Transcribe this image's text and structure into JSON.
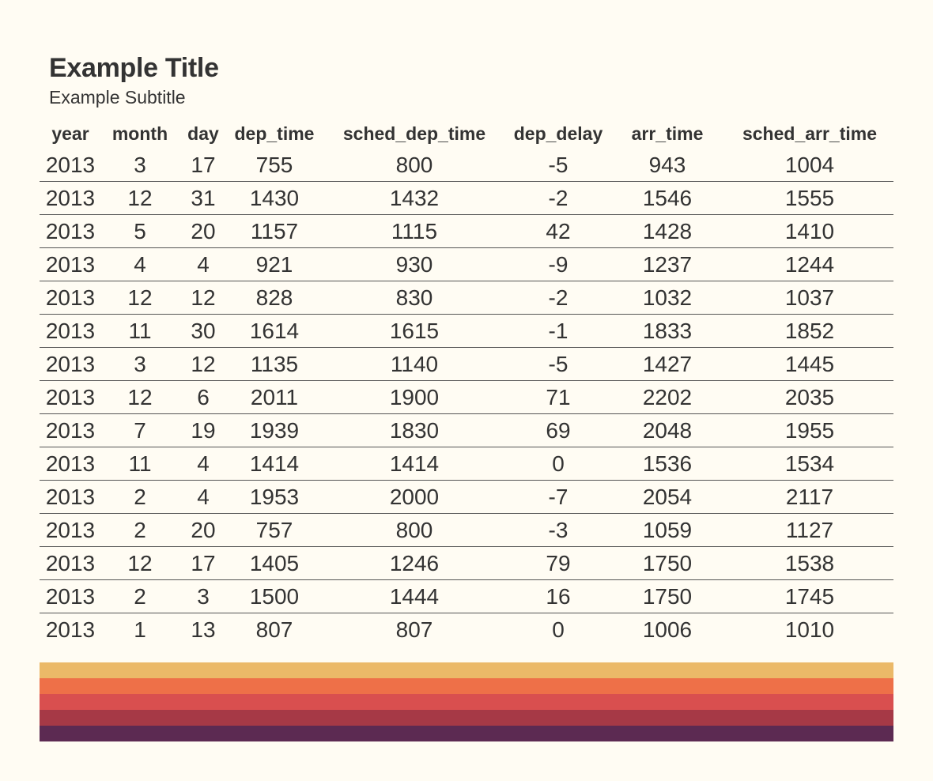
{
  "header": {
    "title": "Example Title",
    "subtitle": "Example Subtitle"
  },
  "chart_data": {
    "type": "table",
    "title": "Example Title",
    "subtitle": "Example Subtitle",
    "columns": [
      "year",
      "month",
      "day",
      "dep_time",
      "sched_dep_time",
      "dep_delay",
      "arr_time",
      "sched_arr_time"
    ],
    "rows": [
      [
        2013,
        3,
        17,
        755,
        800,
        -5,
        943,
        1004
      ],
      [
        2013,
        12,
        31,
        1430,
        1432,
        -2,
        1546,
        1555
      ],
      [
        2013,
        5,
        20,
        1157,
        1115,
        42,
        1428,
        1410
      ],
      [
        2013,
        4,
        4,
        921,
        930,
        -9,
        1237,
        1244
      ],
      [
        2013,
        12,
        12,
        828,
        830,
        -2,
        1032,
        1037
      ],
      [
        2013,
        11,
        30,
        1614,
        1615,
        -1,
        1833,
        1852
      ],
      [
        2013,
        3,
        12,
        1135,
        1140,
        -5,
        1427,
        1445
      ],
      [
        2013,
        12,
        6,
        2011,
        1900,
        71,
        2202,
        2035
      ],
      [
        2013,
        7,
        19,
        1939,
        1830,
        69,
        2048,
        1955
      ],
      [
        2013,
        11,
        4,
        1414,
        1414,
        0,
        1536,
        1534
      ],
      [
        2013,
        2,
        4,
        1953,
        2000,
        -7,
        2054,
        2117
      ],
      [
        2013,
        2,
        20,
        757,
        800,
        -3,
        1059,
        1127
      ],
      [
        2013,
        12,
        17,
        1405,
        1246,
        79,
        1750,
        1538
      ],
      [
        2013,
        2,
        3,
        1500,
        1444,
        16,
        1750,
        1745
      ],
      [
        2013,
        1,
        13,
        807,
        807,
        0,
        1006,
        1010
      ]
    ]
  },
  "footer_stripes": [
    "#ebb968",
    "#ee7048",
    "#d94f4f",
    "#a63946",
    "#5c2a52"
  ]
}
